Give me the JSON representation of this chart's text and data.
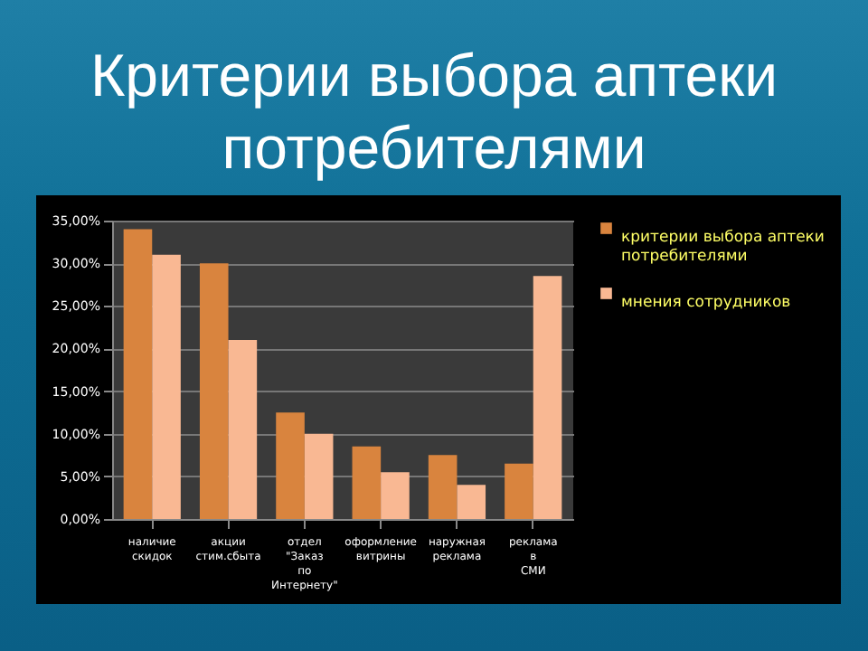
{
  "chart_data": {
    "type": "bar",
    "title": "Критерии выбора аптеки потребителями",
    "categories": [
      "наличие скидок",
      "акции стим.сбыта",
      "отдел \"Заказ по Интернету\"",
      "оформление витрины",
      "наружная реклама",
      "реклама в СМИ"
    ],
    "series": [
      {
        "name": "критерии выбора аптеки потребителями",
        "color": "#d9843e",
        "values": [
          34,
          30,
          12.5,
          8.5,
          7.5,
          6.5
        ]
      },
      {
        "name": "мнения сотрудников",
        "color": "#f9b893",
        "values": [
          31,
          21,
          10,
          5.5,
          4,
          28.5
        ]
      }
    ],
    "ylim": [
      0,
      35
    ],
    "yticks": [
      {
        "value": 0,
        "label": "0,00%"
      },
      {
        "value": 5,
        "label": "5,00%"
      },
      {
        "value": 10,
        "label": "10,00%"
      },
      {
        "value": 15,
        "label": "15,00%"
      },
      {
        "value": 20,
        "label": "20,00%"
      },
      {
        "value": 25,
        "label": "25,00%"
      },
      {
        "value": 30,
        "label": "30,00%"
      },
      {
        "value": 35,
        "label": "35,00%"
      }
    ],
    "grid": "y",
    "legend": "right"
  }
}
